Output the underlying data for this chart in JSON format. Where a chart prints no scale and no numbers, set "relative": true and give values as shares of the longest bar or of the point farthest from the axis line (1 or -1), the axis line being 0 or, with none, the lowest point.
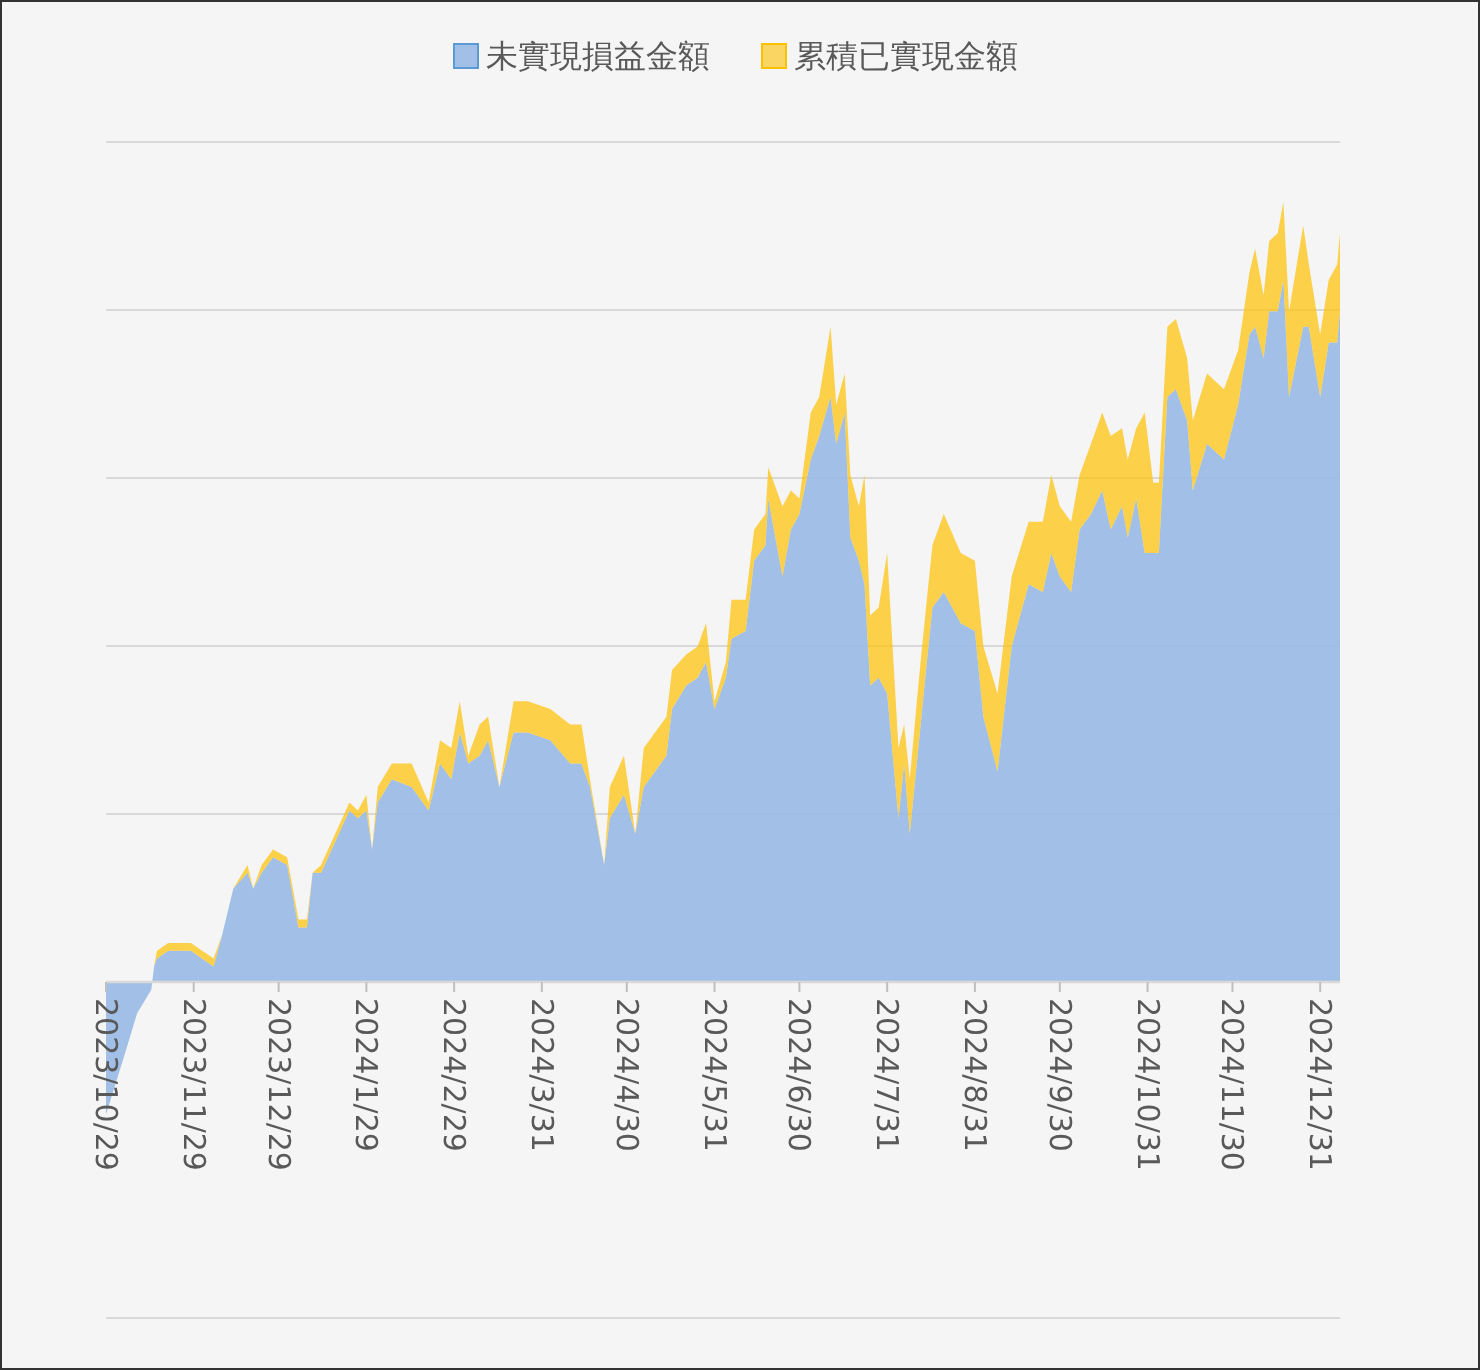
{
  "chart_data": {
    "type": "area",
    "stacked": true,
    "relative": true,
    "grid": "y",
    "legend": "top",
    "x": [
      "2023-10-29",
      "2023-11-04",
      "2023-11-09",
      "2023-11-14",
      "2023-11-15",
      "2023-11-16",
      "2023-11-20",
      "2023-11-23",
      "2023-11-28",
      "2023-12-06",
      "2023-12-09",
      "2023-12-13",
      "2023-12-18",
      "2023-12-20",
      "2023-12-23",
      "2023-12-27",
      "2024-01-01",
      "2024-01-05",
      "2024-01-08",
      "2024-01-10",
      "2024-01-13",
      "2024-01-23",
      "2024-01-26",
      "2024-01-29",
      "2024-01-31",
      "2024-02-02",
      "2024-02-07",
      "2024-02-14",
      "2024-02-20",
      "2024-02-24",
      "2024-02-28",
      "2024-03-02",
      "2024-03-05",
      "2024-03-09",
      "2024-03-12",
      "2024-03-16",
      "2024-03-21",
      "2024-03-26",
      "2024-04-03",
      "2024-04-10",
      "2024-04-14",
      "2024-04-17",
      "2024-04-22",
      "2024-04-24",
      "2024-04-29",
      "2024-05-03",
      "2024-05-06",
      "2024-05-14",
      "2024-05-16",
      "2024-05-21",
      "2024-05-25",
      "2024-05-28",
      "2024-05-31",
      "2024-06-04",
      "2024-06-06",
      "2024-06-11",
      "2024-06-14",
      "2024-06-18",
      "2024-06-19",
      "2024-06-24",
      "2024-06-27",
      "2024-06-30",
      "2024-07-04",
      "2024-07-07",
      "2024-07-11",
      "2024-07-13",
      "2024-07-16",
      "2024-07-18",
      "2024-07-21",
      "2024-07-23",
      "2024-07-25",
      "2024-07-28",
      "2024-07-31",
      "2024-08-04",
      "2024-08-06",
      "2024-08-08",
      "2024-08-11",
      "2024-08-14",
      "2024-08-16",
      "2024-08-20",
      "2024-08-26",
      "2024-08-31",
      "2024-09-03",
      "2024-09-08",
      "2024-09-13",
      "2024-09-19",
      "2024-09-24",
      "2024-09-27",
      "2024-09-30",
      "2024-10-04",
      "2024-10-07",
      "2024-10-11",
      "2024-10-15",
      "2024-10-18",
      "2024-10-22",
      "2024-10-24",
      "2024-10-27",
      "2024-10-30",
      "2024-11-02",
      "2024-11-04",
      "2024-11-07",
      "2024-11-10",
      "2024-11-14",
      "2024-11-16",
      "2024-11-21",
      "2024-11-27",
      "2024-12-02",
      "2024-12-06",
      "2024-12-08",
      "2024-12-11",
      "2024-12-13",
      "2024-12-16",
      "2024-12-18",
      "2024-12-20",
      "2024-12-25",
      "2024-12-27",
      "2024-12-31",
      "2025-01-03",
      "2025-01-06",
      "2025-01-07"
    ],
    "xlim": [
      "2023-10-29",
      "2025-01-07"
    ],
    "xticks": [
      {
        "value": "2023-10-29",
        "label": "2023/10/29"
      },
      {
        "value": "2023-11-29",
        "label": "2023/11/29"
      },
      {
        "value": "2023-12-29",
        "label": "2023/12/29"
      },
      {
        "value": "2024-01-29",
        "label": "2024/1/29"
      },
      {
        "value": "2024-02-29",
        "label": "2024/2/29"
      },
      {
        "value": "2024-03-31",
        "label": "2024/3/31"
      },
      {
        "value": "2024-04-30",
        "label": "2024/4/30"
      },
      {
        "value": "2024-05-31",
        "label": "2024/5/31"
      },
      {
        "value": "2024-06-30",
        "label": "2024/6/30"
      },
      {
        "value": "2024-07-31",
        "label": "2024/7/31"
      },
      {
        "value": "2024-08-31",
        "label": "2024/8/31"
      },
      {
        "value": "2024-09-30",
        "label": "2024/9/30"
      },
      {
        "value": "2024-10-31",
        "label": "2024/10/31"
      },
      {
        "value": "2024-11-30",
        "label": "2024/11/30"
      },
      {
        "value": "2024-12-31",
        "label": "2024/12/31"
      }
    ],
    "series": [
      {
        "name": "未實現損益金額",
        "color": "#9dbde6",
        "values": [
          -0.17,
          -0.1,
          -0.04,
          -0.01,
          0.02,
          0.03,
          0.04,
          0.04,
          0.04,
          0.02,
          0.06,
          0.12,
          0.14,
          0.12,
          0.14,
          0.16,
          0.15,
          0.07,
          0.07,
          0.14,
          0.14,
          0.22,
          0.21,
          0.22,
          0.17,
          0.23,
          0.26,
          0.25,
          0.22,
          0.28,
          0.26,
          0.32,
          0.28,
          0.29,
          0.31,
          0.25,
          0.32,
          0.32,
          0.31,
          0.28,
          0.28,
          0.25,
          0.15,
          0.21,
          0.24,
          0.19,
          0.25,
          0.29,
          0.35,
          0.38,
          0.39,
          0.41,
          0.35,
          0.39,
          0.44,
          0.45,
          0.54,
          0.56,
          0.62,
          0.52,
          0.58,
          0.6,
          0.67,
          0.7,
          0.75,
          0.69,
          0.73,
          0.57,
          0.54,
          0.51,
          0.38,
          0.39,
          0.37,
          0.21,
          0.28,
          0.19,
          0.3,
          0.41,
          0.48,
          0.5,
          0.46,
          0.45,
          0.34,
          0.27,
          0.43,
          0.51,
          0.5,
          0.55,
          0.52,
          0.5,
          0.58,
          0.6,
          0.63,
          0.58,
          0.61,
          0.57,
          0.62,
          0.55,
          0.55,
          0.55,
          0.75,
          0.76,
          0.72,
          0.63,
          0.69,
          0.67,
          0.74,
          0.83,
          0.84,
          0.8,
          0.86,
          0.86,
          0.9,
          0.75,
          0.84,
          0.84,
          0.75,
          0.82,
          0.82,
          0.86
        ]
      },
      {
        "name": "累積已實現金額",
        "color": "#ffc000",
        "values": [
          0,
          0,
          0,
          0,
          0,
          0.01,
          0.01,
          0.01,
          0.01,
          0.01,
          0,
          0,
          0.01,
          0,
          0.01,
          0.01,
          0.01,
          0.01,
          0.01,
          0,
          0.01,
          0.01,
          0.01,
          0.02,
          0,
          0.02,
          0.02,
          0.03,
          0.01,
          0.03,
          0.04,
          0.04,
          0.01,
          0.04,
          0.03,
          0,
          0.04,
          0.04,
          0.04,
          0.05,
          0.05,
          0.01,
          0,
          0.04,
          0.05,
          0,
          0.05,
          0.05,
          0.05,
          0.04,
          0.04,
          0.05,
          0.01,
          0.02,
          0.05,
          0.04,
          0.04,
          0.04,
          0.04,
          0.09,
          0.05,
          0.02,
          0.06,
          0.05,
          0.09,
          0.05,
          0.05,
          0.08,
          0.07,
          0.14,
          0.09,
          0.09,
          0.18,
          0.09,
          0.05,
          0.07,
          0.08,
          0.08,
          0.08,
          0.1,
          0.09,
          0.09,
          0.09,
          0.1,
          0.09,
          0.08,
          0.09,
          0.1,
          0.09,
          0.09,
          0.07,
          0.09,
          0.1,
          0.12,
          0.1,
          0.1,
          0.09,
          0.18,
          0.09,
          0.09,
          0.09,
          0.09,
          0.08,
          0.09,
          0.09,
          0.09,
          0.07,
          0.08,
          0.1,
          0.08,
          0.09,
          0.1,
          0.1,
          0.11,
          0.13,
          0.08,
          0.08,
          0.08,
          0.1,
          0.1
        ]
      }
    ]
  }
}
